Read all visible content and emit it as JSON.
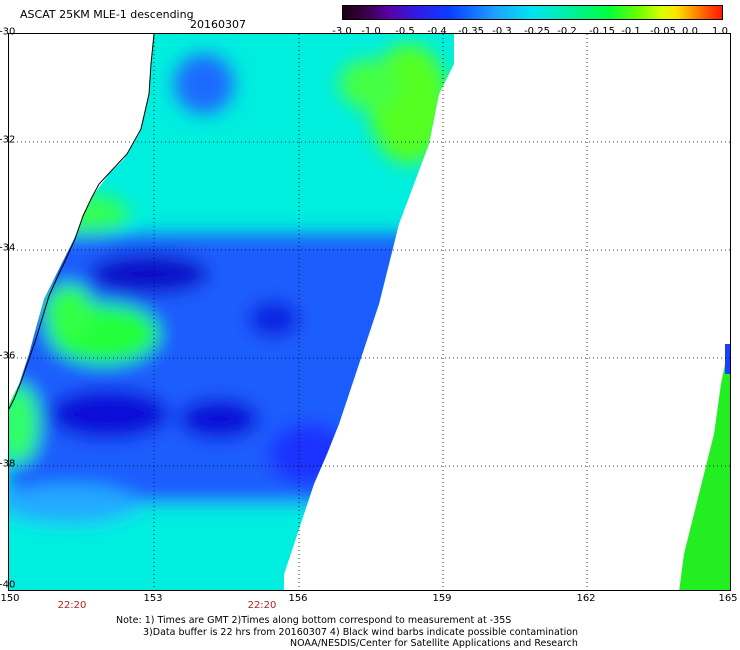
{
  "title": "ASCAT 25KM MLE-1 descending",
  "date": "20160307",
  "colorbar": {
    "ticks": [
      "-3.0",
      "-1.0",
      "-0.5",
      "-0.4",
      "-0.35",
      "-0.3",
      "-0.25",
      "-0.2",
      "-0.15",
      "-0.1",
      "-0.05",
      "0.0",
      "1.0"
    ]
  },
  "map": {
    "lat_labels": [
      "-30",
      "-32",
      "-34",
      "-36",
      "-38",
      "-40"
    ],
    "lon_labels": [
      "150",
      "153",
      "156",
      "159",
      "162",
      "165"
    ],
    "time_labels": [
      "22:20",
      "22:20"
    ],
    "colors": {
      "deep_blue": "#0a3cff",
      "cyan": "#00eeee",
      "green": "#22ff22",
      "purple": "#5a00c8"
    }
  },
  "notes": {
    "line1": "Note: 1) Times are GMT 2)Times along bottom correspond to measurement at -35S",
    "line2": "3)Data buffer is 22 hrs from 20160307 4) Black wind barbs indicate possible contamination",
    "line3": "NOAA/NESDIS/Center for Satellite Applications and Research"
  }
}
